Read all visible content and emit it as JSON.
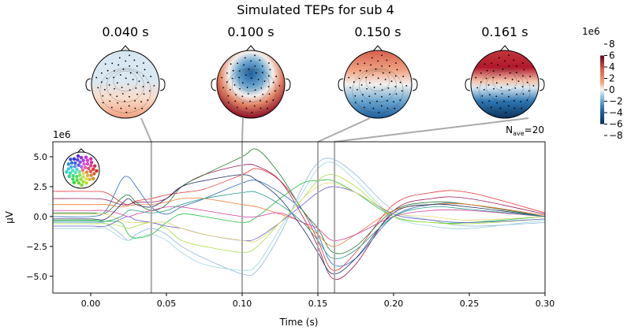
{
  "chart_data": {
    "type": "line",
    "title": "Simulated TEPs for sub 4",
    "xlabel": "Time (s)",
    "ylabel": "µV",
    "y_exponent_label": "1e6",
    "xlim": [
      -0.025,
      0.3
    ],
    "ylim": [
      -6.4,
      6.25
    ],
    "x_ticks": [
      "0.00",
      "0.05",
      "0.10",
      "0.15",
      "0.20",
      "0.25",
      "0.30"
    ],
    "x_tick_values": [
      0,
      0.05,
      0.1,
      0.15,
      0.2,
      0.25,
      0.3
    ],
    "y_ticks": [
      "−5.0",
      "−2.5",
      "0.0",
      "2.5",
      "5.0"
    ],
    "y_tick_values": [
      -5,
      -2.5,
      0,
      2.5,
      5
    ],
    "annotation_nave": "N",
    "annotation_nave_sub": "ave",
    "annotation_nave_value": "=20",
    "grid": false,
    "topomap_times": [
      0.04,
      0.1,
      0.15,
      0.161
    ],
    "topomap_labels": [
      "0.040 s",
      "0.100 s",
      "0.150 s",
      "0.161 s"
    ],
    "colorbar": {
      "exponent_label": "1e6",
      "ticks": [
        "8",
        "6",
        "4",
        "2",
        "0",
        "−2",
        "−4",
        "−6",
        "−8"
      ],
      "tick_values": [
        8,
        6,
        4,
        2,
        0,
        -2,
        -4,
        -6,
        -8
      ],
      "colormap": "RdBu_r",
      "range": [
        -6,
        6
      ]
    },
    "x": [
      -0.025,
      0,
      0.01,
      0.02,
      0.025,
      0.03,
      0.04,
      0.05,
      0.06,
      0.075,
      0.1,
      0.11,
      0.125,
      0.14,
      0.15,
      0.16,
      0.175,
      0.2,
      0.225,
      0.25,
      0.3
    ],
    "series": [
      {
        "color": "#e8333a",
        "values": [
          2.1,
          2.1,
          2.0,
          1.2,
          1.0,
          1.3,
          1.5,
          1.8,
          2.0,
          2.3,
          3.5,
          4.0,
          3.0,
          0.5,
          -2.0,
          -4.5,
          -3.0,
          1.0,
          2.0,
          2.0,
          0.3
        ]
      },
      {
        "color": "#9b1c5a",
        "values": [
          1.5,
          1.5,
          1.4,
          1.0,
          1.0,
          1.2,
          1.2,
          1.5,
          2.5,
          3.5,
          4.3,
          4.2,
          3.0,
          0,
          -2.5,
          -5.2,
          -4.0,
          0.5,
          1.5,
          1.5,
          0.2
        ]
      },
      {
        "color": "#2c6db5",
        "values": [
          0,
          0,
          0.5,
          3.0,
          3.3,
          2.5,
          0.8,
          0.2,
          0.8,
          1.5,
          2.8,
          3.0,
          2.0,
          0.5,
          -1.5,
          -4.0,
          -3.5,
          0,
          1.0,
          1.0,
          0.1
        ]
      },
      {
        "color": "#1f7a2e",
        "values": [
          0.3,
          0.3,
          0.3,
          1.5,
          1.8,
          1.2,
          0.5,
          1.0,
          2.5,
          3.5,
          5.0,
          5.6,
          3.5,
          0.5,
          -1.0,
          -3.0,
          -2.5,
          0.5,
          1.2,
          1.0,
          0
        ]
      },
      {
        "color": "#8fb8dc",
        "values": [
          -0.5,
          -0.5,
          -0.6,
          -1.5,
          -2.0,
          -1.5,
          -1.0,
          -1.5,
          -2.5,
          -3.5,
          -4.8,
          -4.5,
          -1.5,
          2.5,
          4.5,
          4.8,
          3.5,
          0.5,
          -0.3,
          -0.8,
          -0.5
        ]
      },
      {
        "color": "#9dd6e0",
        "values": [
          -1.0,
          -1.0,
          -1.0,
          -1.8,
          -2.0,
          -1.8,
          -1.5,
          -2.0,
          -3.0,
          -4.0,
          -4.5,
          -4.0,
          -1.0,
          2.0,
          4.0,
          4.5,
          3.0,
          0,
          -0.8,
          -1.0,
          -0.3
        ]
      },
      {
        "color": "#22c03a",
        "values": [
          -0.3,
          -0.3,
          -0.4,
          -0.5,
          -1.5,
          -1.8,
          -1.5,
          -0.5,
          0.2,
          0,
          -0.5,
          0,
          1.5,
          2.8,
          3.0,
          3.0,
          2.0,
          0,
          -0.5,
          -0.5,
          0
        ]
      },
      {
        "color": "#a8e040",
        "values": [
          -0.6,
          -0.6,
          -0.6,
          -0.8,
          -1.0,
          -0.8,
          -0.5,
          -1.0,
          -2.0,
          -2.5,
          -3.0,
          -2.5,
          -0.5,
          1.5,
          3.0,
          3.5,
          2.5,
          0,
          -0.5,
          -0.6,
          -0.2
        ]
      },
      {
        "color": "#f07a30",
        "values": [
          1.0,
          1.0,
          1.0,
          0.8,
          0.9,
          1.0,
          1.0,
          1.2,
          1.5,
          1.5,
          1.0,
          0.8,
          0.2,
          -0.5,
          -1.5,
          -2.5,
          -1.5,
          0.5,
          1.0,
          1.0,
          0.1
        ]
      },
      {
        "color": "#d63fa0",
        "values": [
          0.5,
          0.5,
          0.5,
          0.2,
          0,
          0.2,
          0.5,
          0.8,
          0.8,
          0.5,
          0,
          0,
          0.3,
          -0.5,
          -1.0,
          -2.0,
          -1.5,
          0,
          0.5,
          0.5,
          0
        ]
      },
      {
        "color": "#1b2a5e",
        "values": [
          -0.2,
          -0.2,
          -0.2,
          1.0,
          1.5,
          1.0,
          0.8,
          1.5,
          2.5,
          3.0,
          3.5,
          3.0,
          1.5,
          -1.0,
          -3.0,
          -4.8,
          -3.5,
          0.3,
          1.0,
          0.8,
          0
        ]
      },
      {
        "color": "#6a5fd0",
        "values": [
          -0.8,
          -0.8,
          -0.8,
          -0.2,
          0,
          -0.3,
          -0.5,
          -0.8,
          -1.0,
          -1.5,
          -2.0,
          -1.8,
          -0.5,
          1.0,
          2.0,
          2.5,
          2.0,
          0.2,
          -0.3,
          -0.5,
          -0.2
        ]
      },
      {
        "color": "#e3d870",
        "values": [
          0.2,
          0.2,
          0.2,
          -0.3,
          -0.5,
          -0.5,
          -0.5,
          -0.5,
          -1.0,
          -1.5,
          -2.0,
          -2.0,
          -0.5,
          1.5,
          2.5,
          2.8,
          2.0,
          0.3,
          0,
          -0.3,
          0
        ]
      },
      {
        "color": "#2a9a8a",
        "values": [
          -0.4,
          -0.4,
          -0.4,
          0,
          0.5,
          0.5,
          0.3,
          0.5,
          1.0,
          1.5,
          2.0,
          2.0,
          1.0,
          -0.5,
          -2.0,
          -3.5,
          -2.8,
          0,
          0.8,
          0.6,
          0
        ]
      }
    ]
  }
}
